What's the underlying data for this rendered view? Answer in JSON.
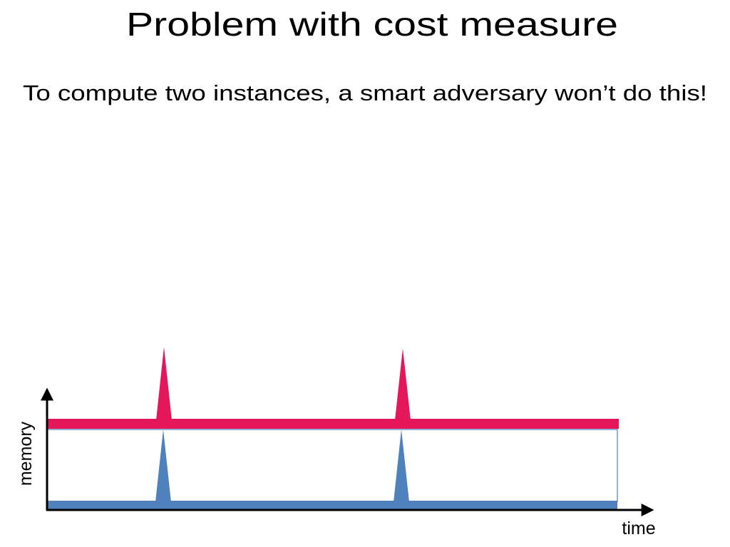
{
  "title": "Problem with cost measure",
  "subtitle": "To compute two instances, a smart adversary won’t do this!",
  "diagram": {
    "y_axis_label": "memory",
    "x_axis_label": "time"
  }
}
